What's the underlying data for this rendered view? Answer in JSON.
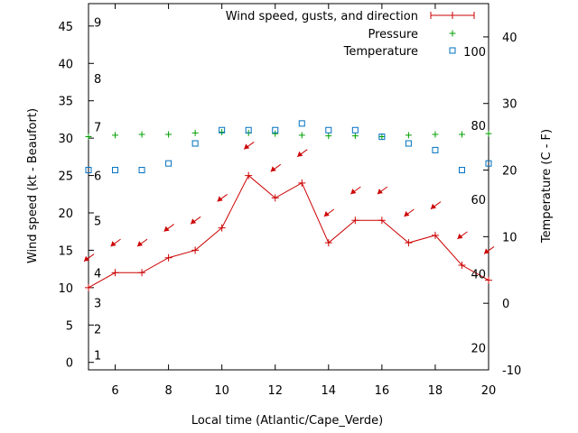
{
  "chart_data": {
    "type": "line",
    "xlabel": "Local time (Atlantic/Cape_Verde)",
    "ylabel_left": "Wind speed (kt - Beaufort)",
    "ylabel_right": "Temperature (C - F)",
    "xlim": [
      5,
      20
    ],
    "ylim_left": [
      -1,
      48
    ],
    "ylim_right": [
      -10,
      45
    ],
    "x_ticks": [
      6,
      8,
      10,
      12,
      14,
      16,
      18,
      20
    ],
    "y_left_ticks": [
      0,
      5,
      10,
      15,
      20,
      25,
      30,
      35,
      40,
      45
    ],
    "y_right_ticks": [
      -10,
      0,
      10,
      20,
      30,
      40
    ],
    "beaufort_labels": [
      {
        "label": "1",
        "kt": 1
      },
      {
        "label": "2",
        "kt": 4.5
      },
      {
        "label": "3",
        "kt": 8
      },
      {
        "label": "4",
        "kt": 12
      },
      {
        "label": "5",
        "kt": 19
      },
      {
        "label": "6",
        "kt": 25
      },
      {
        "label": "7",
        "kt": 31.5
      },
      {
        "label": "8",
        "kt": 38
      },
      {
        "label": "9",
        "kt": 45.5
      }
    ],
    "fahrenheit_labels": [
      {
        "label": "20",
        "c": -6.7
      },
      {
        "label": "40",
        "c": 4.4
      },
      {
        "label": "60",
        "c": 15.6
      },
      {
        "label": "80",
        "c": 26.7
      },
      {
        "label": "100",
        "c": 37.8
      }
    ],
    "legend": {
      "placement": "top-right",
      "entries": [
        {
          "label": "Wind speed, gusts, and direction",
          "marker": "line-plus"
        },
        {
          "label": "Pressure",
          "marker": "plus"
        },
        {
          "label": "Temperature",
          "marker": "square"
        }
      ]
    },
    "series": [
      {
        "name": "Wind speed, gusts, and direction",
        "color": "#cc0000",
        "x": [
          5,
          6,
          7,
          8,
          9,
          10,
          11,
          12,
          13,
          14,
          15,
          16,
          17,
          18,
          19,
          20
        ],
        "values": [
          10,
          12,
          12,
          14,
          15,
          18,
          25,
          22,
          24,
          16,
          19,
          19,
          16,
          17,
          13,
          11
        ]
      },
      {
        "name": "Wind direction arrows",
        "color": "#cc0000",
        "x": [
          5,
          6,
          7,
          8,
          9,
          10,
          11,
          12,
          13,
          14,
          15,
          16,
          17,
          18,
          19,
          20
        ],
        "values": [
          14,
          16,
          16,
          18,
          19,
          22,
          29,
          26,
          28,
          20,
          23,
          23,
          20,
          21,
          17,
          15
        ]
      },
      {
        "name": "Pressure",
        "color": "#00a000",
        "x": [
          5,
          6,
          7,
          8,
          9,
          10,
          11,
          12,
          13,
          14,
          15,
          16,
          17,
          18,
          19,
          20
        ],
        "values": [
          30.2,
          30.4,
          30.5,
          30.5,
          30.7,
          30.8,
          30.7,
          30.6,
          30.4,
          30.3,
          30.3,
          30.2,
          30.4,
          30.5,
          30.5,
          30.6
        ]
      },
      {
        "name": "Temperature",
        "color": "#0070c0",
        "x": [
          5,
          6,
          7,
          8,
          9,
          10,
          11,
          12,
          13,
          14,
          15,
          16,
          17,
          18,
          19,
          20
        ],
        "values": [
          20,
          20,
          20,
          21,
          24,
          26,
          26,
          26,
          27,
          26,
          26,
          25,
          24,
          23,
          20,
          21
        ]
      }
    ]
  }
}
